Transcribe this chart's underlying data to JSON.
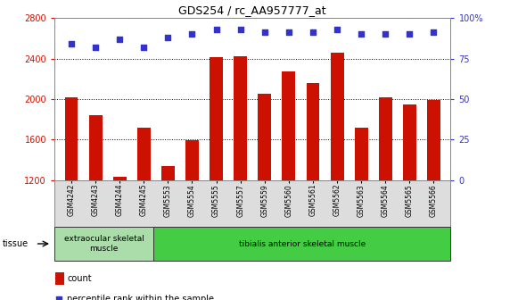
{
  "title": "GDS254 / rc_AA957777_at",
  "samples": [
    "GSM4242",
    "GSM4243",
    "GSM4244",
    "GSM4245",
    "GSM5553",
    "GSM5554",
    "GSM5555",
    "GSM5557",
    "GSM5559",
    "GSM5560",
    "GSM5561",
    "GSM5562",
    "GSM5563",
    "GSM5564",
    "GSM5565",
    "GSM5566"
  ],
  "counts": [
    2020,
    1840,
    1230,
    1720,
    1340,
    1590,
    2410,
    2420,
    2050,
    2270,
    2160,
    2460,
    1720,
    2020,
    1950,
    1990
  ],
  "percentiles": [
    84,
    82,
    87,
    82,
    88,
    90,
    93,
    93,
    91,
    91,
    91,
    93,
    90,
    90,
    90,
    91
  ],
  "bar_color": "#cc1100",
  "dot_color": "#3333cc",
  "ylim_left": [
    1200,
    2800
  ],
  "ylim_right": [
    0,
    100
  ],
  "yticks_left": [
    1200,
    1600,
    2000,
    2400,
    2800
  ],
  "yticks_right": [
    0,
    25,
    50,
    75,
    100
  ],
  "grid_color": "#000000",
  "bg_color": "#ffffff",
  "tissue_groups": [
    {
      "label": "extraocular skeletal\nmuscle",
      "start": 0,
      "end": 4,
      "color": "#aaddaa"
    },
    {
      "label": "tibialis anterior skeletal muscle",
      "start": 4,
      "end": 16,
      "color": "#44cc44"
    }
  ],
  "legend_count_label": "count",
  "legend_percentile_label": "percentile rank within the sample",
  "tissue_label": "tissue",
  "xtick_bg": "#dddddd"
}
